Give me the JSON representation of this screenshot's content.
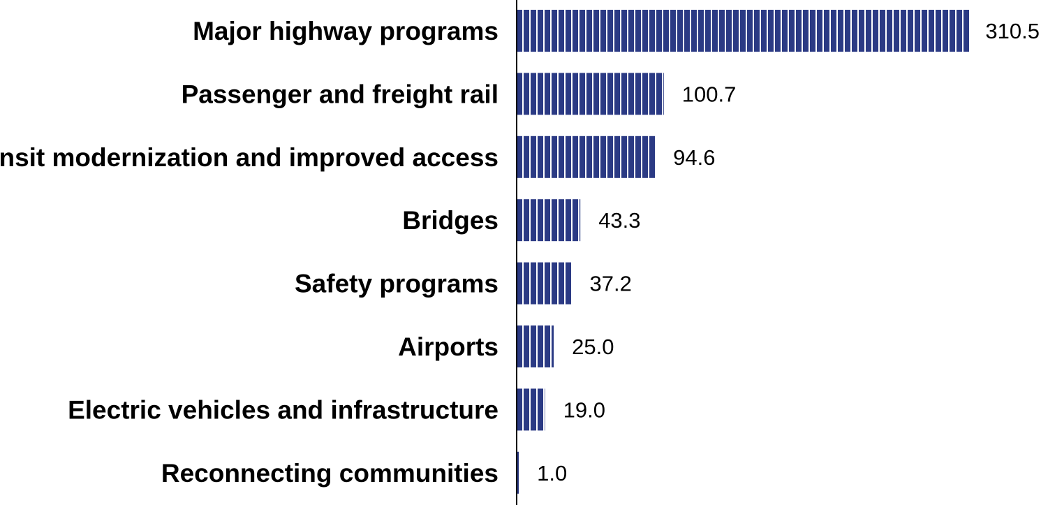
{
  "chart_data": {
    "type": "bar",
    "orientation": "horizontal",
    "categories": [
      "Major highway programs",
      "Passenger and freight rail",
      "Transit modernization and improved access",
      "Bridges",
      "Safety programs",
      "Airports",
      "Electric vehicles and infrastructure",
      "Reconnecting communities"
    ],
    "values": [
      310.5,
      100.7,
      94.6,
      43.3,
      37.2,
      25.0,
      19.0,
      1.0
    ],
    "value_labels": [
      "310.5",
      "100.7",
      "94.6",
      "43.3",
      "37.2",
      "25.0",
      "19.0",
      "1.0"
    ],
    "title": "",
    "xlabel": "",
    "ylabel": "",
    "xlim": [
      0,
      310.5
    ],
    "grid": false,
    "legend": "none",
    "bar_color": "#2b3a84",
    "bar_pattern": "vertical white stripes"
  }
}
